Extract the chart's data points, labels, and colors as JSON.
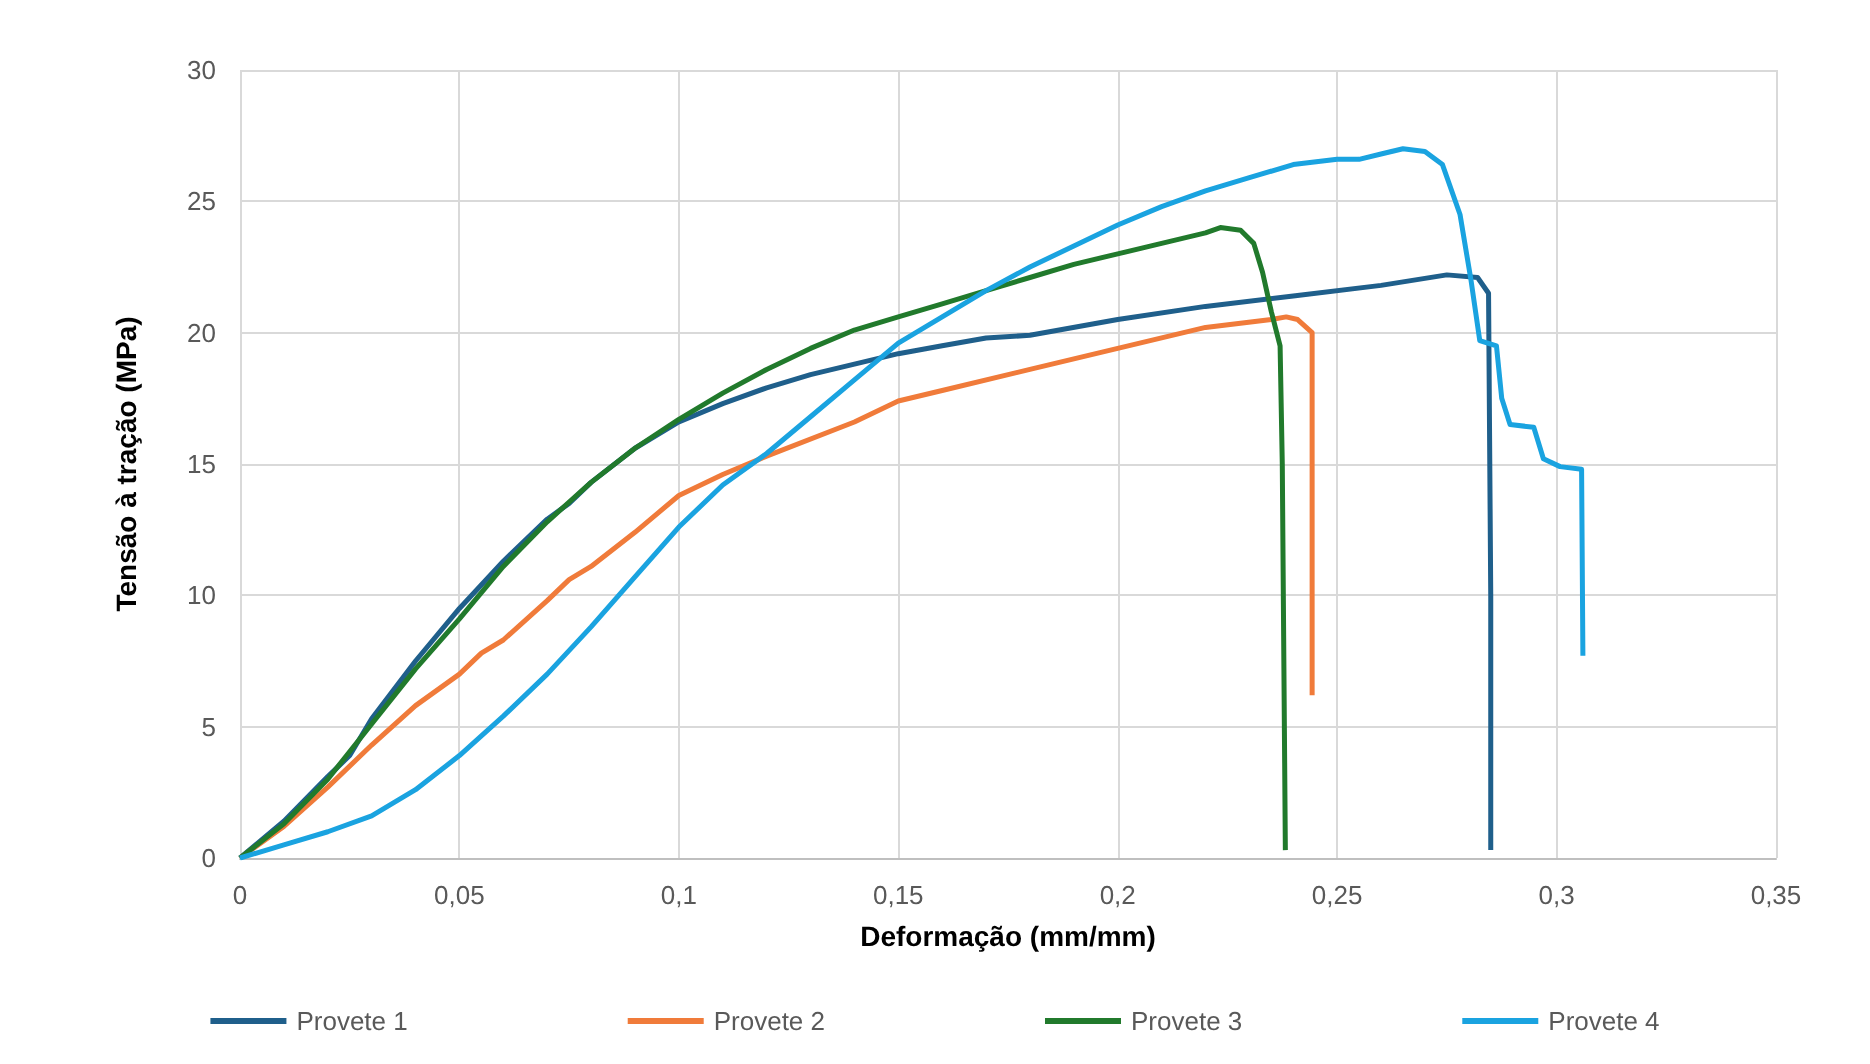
{
  "chart_data": {
    "type": "line",
    "xlabel": "Deformação (mm/mm)",
    "ylabel": "Tensão à tração (MPa)",
    "xlim": [
      0,
      0.35
    ],
    "xticks": [
      0,
      {
        "value": 0.05,
        "label": "0,05"
      },
      {
        "value": 0.1,
        "label": "0,1"
      },
      {
        "value": 0.15,
        "label": "0,15"
      },
      {
        "value": 0.2,
        "label": "0,2"
      },
      {
        "value": 0.25,
        "label": "0,25"
      },
      {
        "value": 0.3,
        "label": "0,3"
      },
      {
        "value": 0.35,
        "label": "0,35"
      }
    ],
    "ylim": [
      0,
      30
    ],
    "yticks": [
      0,
      5,
      10,
      15,
      20,
      25,
      30
    ],
    "grid": true,
    "legend": "bottom",
    "marker": "none",
    "line_style": "solid",
    "series": [
      {
        "name": "Provete 1",
        "color": "#1f5f8b",
        "x": [
          0,
          0.01,
          0.02,
          0.025,
          0.03,
          0.04,
          0.05,
          0.06,
          0.07,
          0.075,
          0.08,
          0.09,
          0.1,
          0.11,
          0.12,
          0.13,
          0.14,
          0.15,
          0.16,
          0.17,
          0.18,
          0.2,
          0.22,
          0.24,
          0.26,
          0.275,
          0.282,
          0.2845,
          0.285,
          0.285
        ],
        "values": [
          0,
          1.4,
          3.1,
          3.9,
          5.3,
          7.5,
          9.5,
          11.3,
          12.9,
          13.5,
          14.3,
          15.6,
          16.6,
          17.3,
          17.9,
          18.4,
          18.8,
          19.2,
          19.5,
          19.8,
          19.9,
          20.5,
          21,
          21.4,
          21.8,
          22.2,
          22.1,
          21.5,
          10,
          0.3
        ]
      },
      {
        "name": "Provete 2",
        "color": "#f07b3a",
        "x": [
          0,
          0.01,
          0.02,
          0.03,
          0.04,
          0.05,
          0.055,
          0.06,
          0.07,
          0.075,
          0.08,
          0.09,
          0.1,
          0.11,
          0.12,
          0.14,
          0.15,
          0.16,
          0.18,
          0.2,
          0.22,
          0.235,
          0.2384,
          0.241,
          0.2443,
          0.2443
        ],
        "values": [
          0,
          1.2,
          2.7,
          4.3,
          5.8,
          7.0,
          7.8,
          8.3,
          9.8,
          10.6,
          11.1,
          12.4,
          13.8,
          14.6,
          15.3,
          16.6,
          17.4,
          17.8,
          18.6,
          19.4,
          20.2,
          20.5,
          20.6,
          20.5,
          20.0,
          6.2
        ]
      },
      {
        "name": "Provete 3",
        "color": "#217a2c",
        "x": [
          0,
          0.01,
          0.02,
          0.03,
          0.04,
          0.05,
          0.06,
          0.07,
          0.08,
          0.09,
          0.1,
          0.11,
          0.12,
          0.13,
          0.14,
          0.15,
          0.16,
          0.17,
          0.18,
          0.19,
          0.2,
          0.21,
          0.22,
          0.2234,
          0.228,
          0.231,
          0.233,
          0.235,
          0.237,
          0.2375,
          0.2382
        ],
        "values": [
          0,
          1.3,
          3,
          5.1,
          7.2,
          9.1,
          11.1,
          12.8,
          14.3,
          15.6,
          16.7,
          17.7,
          18.6,
          19.4,
          20.1,
          20.6,
          21.1,
          21.6,
          22.1,
          22.6,
          23,
          23.4,
          23.8,
          24,
          23.9,
          23.4,
          22.3,
          20.8,
          19.5,
          15,
          0.3
        ]
      },
      {
        "name": "Provete 4",
        "color": "#1aa3e0",
        "x": [
          0,
          0.01,
          0.02,
          0.03,
          0.04,
          0.05,
          0.06,
          0.07,
          0.08,
          0.09,
          0.1,
          0.11,
          0.12,
          0.13,
          0.14,
          0.15,
          0.16,
          0.17,
          0.18,
          0.19,
          0.2,
          0.21,
          0.22,
          0.23,
          0.24,
          0.25,
          0.255,
          0.26,
          0.265,
          0.27,
          0.274,
          0.278,
          0.2805,
          0.2825,
          0.2863,
          0.2875,
          0.2894,
          0.2948,
          0.297,
          0.3008,
          0.3057,
          0.306
        ],
        "values": [
          0,
          0.5,
          1,
          1.6,
          2.6,
          3.9,
          5.4,
          7,
          8.8,
          10.7,
          12.6,
          14.2,
          15.4,
          16.8,
          18.2,
          19.6,
          20.6,
          21.6,
          22.5,
          23.3,
          24.1,
          24.8,
          25.4,
          25.9,
          26.4,
          26.6,
          26.6,
          26.8,
          27,
          26.9,
          26.4,
          24.5,
          22,
          19.7,
          19.5,
          17.5,
          16.5,
          16.4,
          15.2,
          14.9,
          14.8,
          7.7
        ]
      }
    ]
  }
}
